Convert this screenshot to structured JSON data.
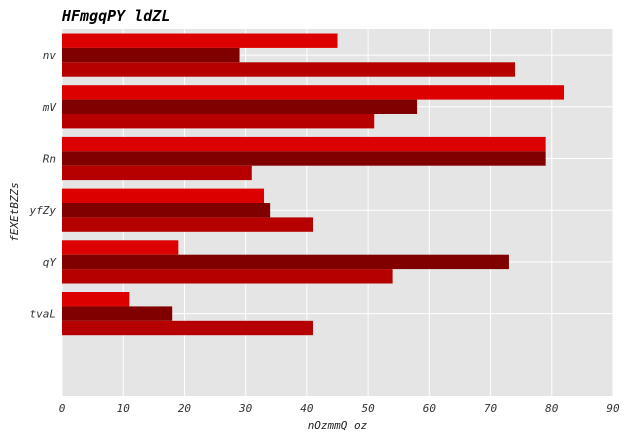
{
  "chart_data": {
    "type": "bar",
    "orientation": "horizontal",
    "title": "HFmgqPY  ldZL",
    "xlabel": "nOzmmQ oz",
    "ylabel": "fEXEtBZZs",
    "categories": [
      "nv",
      "mV",
      "Rn",
      "yfZy",
      "qY",
      "tvaL"
    ],
    "series": [
      {
        "values": [
          45,
          82,
          79,
          33,
          19,
          11
        ],
        "color": "#dd0000"
      },
      {
        "values": [
          29,
          58,
          79,
          34,
          73,
          18
        ],
        "color": "#800000"
      },
      {
        "values": [
          74,
          51,
          31,
          41,
          54,
          41
        ],
        "color": "#b60000"
      }
    ],
    "xlim": [
      0,
      90
    ],
    "xticks": [
      0,
      10,
      20,
      30,
      40,
      50,
      60,
      70,
      80,
      90
    ],
    "grid": true,
    "legend": "none",
    "background_color": "#e5e5e5",
    "grid_color": "#ffffff"
  }
}
